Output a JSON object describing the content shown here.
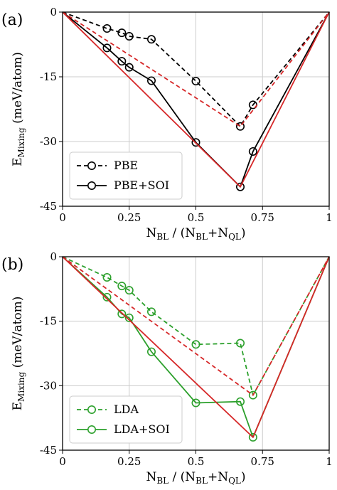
{
  "chart_data": [
    {
      "type": "line",
      "panel_label": "(a)",
      "xlabel": {
        "main": "N",
        "sub": "BL",
        "mid": " / (N",
        "sub2": "BL",
        "plus": "+N",
        "sub3": "QL",
        "end": ")"
      },
      "ylabel": {
        "main": "E",
        "sub": "Mixing",
        "rest": " (meV/atom)"
      },
      "xlim": [
        0,
        1
      ],
      "ylim": [
        -45,
        0
      ],
      "xticks": [
        0,
        0.25,
        0.5,
        0.75,
        1
      ],
      "xtick_labels": [
        "0",
        "0.25",
        "0.5",
        "0.75",
        "1"
      ],
      "yticks": [
        0,
        -15,
        -30,
        -45
      ],
      "ytick_labels": [
        "0",
        "-15",
        "-30",
        "-45"
      ],
      "grid": true,
      "legend_placement": "lower-left",
      "series": [
        {
          "name": "PBE",
          "color": "#000000",
          "style": "dashed",
          "markers": true,
          "in_legend": true,
          "x": [
            0,
            0.1667,
            0.2222,
            0.25,
            0.3333,
            0.5,
            0.6667,
            0.7143,
            1
          ],
          "y": [
            0,
            -3.8,
            -4.8,
            -5.6,
            -6.3,
            -16.0,
            -26.5,
            -21.5,
            0
          ]
        },
        {
          "name": "PBE+SOI",
          "color": "#000000",
          "style": "solid",
          "markers": true,
          "in_legend": true,
          "x": [
            0,
            0.1667,
            0.2222,
            0.25,
            0.3333,
            0.5,
            0.6667,
            0.7143,
            1
          ],
          "y": [
            0,
            -8.3,
            -11.4,
            -12.8,
            -15.9,
            -30.2,
            -40.5,
            -32.3,
            0
          ]
        },
        {
          "color": "#d62728",
          "style": "dashed",
          "markers": false,
          "in_legend": false,
          "x": [
            0,
            0.6667,
            1
          ],
          "y": [
            0,
            -26.5,
            0
          ]
        },
        {
          "color": "#d62728",
          "style": "solid",
          "markers": false,
          "in_legend": false,
          "x": [
            0,
            0.6667,
            1
          ],
          "y": [
            0,
            -40.5,
            0
          ]
        }
      ]
    },
    {
      "type": "line",
      "panel_label": "(b)",
      "xlabel": {
        "main": "N",
        "sub": "BL",
        "mid": " / (N",
        "sub2": "BL",
        "plus": "+N",
        "sub3": "QL",
        "end": ")"
      },
      "ylabel": {
        "main": "E",
        "sub": "Mixing",
        "rest": " (meV/atom)"
      },
      "xlim": [
        0,
        1
      ],
      "ylim": [
        -45,
        0
      ],
      "xticks": [
        0,
        0.25,
        0.5,
        0.75,
        1
      ],
      "xtick_labels": [
        "0",
        "0.25",
        "0.5",
        "0.75",
        "1"
      ],
      "yticks": [
        0,
        -15,
        -30,
        -45
      ],
      "ytick_labels": [
        "0",
        "-15",
        "-30",
        "-45"
      ],
      "grid": true,
      "legend_placement": "lower-left",
      "series": [
        {
          "name": "LDA",
          "color": "#2ca02c",
          "style": "dashed",
          "markers": true,
          "in_legend": true,
          "x": [
            0,
            0.1667,
            0.2222,
            0.25,
            0.3333,
            0.5,
            0.6667,
            0.7143,
            1
          ],
          "y": [
            0,
            -4.8,
            -6.8,
            -7.8,
            -12.8,
            -20.4,
            -20.1,
            -32.2,
            0
          ]
        },
        {
          "name": "LDA+SOI",
          "color": "#2ca02c",
          "style": "solid",
          "markers": true,
          "in_legend": true,
          "x": [
            0,
            0.1667,
            0.2222,
            0.25,
            0.3333,
            0.5,
            0.6667,
            0.7143,
            1
          ],
          "y": [
            0,
            -9.4,
            -13.3,
            -14.2,
            -22.1,
            -34.0,
            -33.7,
            -42.0,
            0
          ]
        },
        {
          "color": "#d62728",
          "style": "dashed",
          "markers": false,
          "in_legend": false,
          "x": [
            0,
            0.7143,
            1
          ],
          "y": [
            0,
            -32.2,
            0
          ]
        },
        {
          "color": "#d62728",
          "style": "solid",
          "markers": false,
          "in_legend": false,
          "x": [
            0,
            0.7143,
            1
          ],
          "y": [
            0,
            -42.0,
            0
          ]
        }
      ]
    }
  ]
}
